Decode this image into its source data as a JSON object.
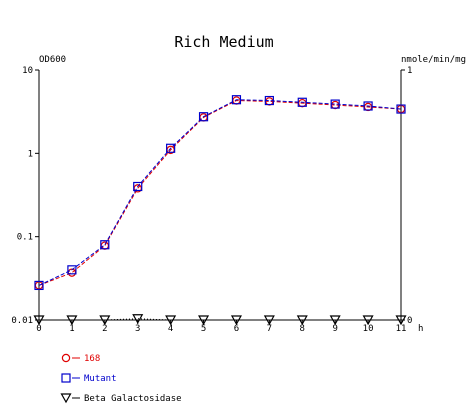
{
  "chart_data": {
    "type": "line",
    "title": "Rich Medium",
    "y_left_label": "OD600",
    "y_right_label": "nmole/min/mg",
    "x_unit_label": "h",
    "x": [
      0,
      1,
      2,
      3,
      4,
      5,
      6,
      7,
      8,
      9,
      10,
      11
    ],
    "x_tick_labels": [
      "0",
      "1",
      "2",
      "3",
      "4",
      "5",
      "6",
      "7",
      "8",
      "9",
      "10",
      "11"
    ],
    "y_left_scale": "log",
    "y_left_range": [
      0.01,
      10
    ],
    "y_left_tick_labels": [
      "10",
      "1",
      "0.1",
      "0.01"
    ],
    "y_right_range": [
      0,
      1
    ],
    "y_right_tick_labels": [
      "1",
      "0"
    ],
    "grid": false,
    "legend_position": "bottom-left",
    "series": [
      {
        "name": "168",
        "axis": "left",
        "marker": "circle",
        "color": "#e00000",
        "line_style": "dashed",
        "values": [
          0.026,
          0.037,
          0.078,
          0.38,
          1.1,
          2.7,
          4.3,
          4.2,
          4.0,
          3.8,
          3.6,
          3.4
        ]
      },
      {
        "name": "Mutant",
        "axis": "left",
        "marker": "square",
        "color": "#0000cc",
        "line_style": "dashed",
        "values": [
          0.026,
          0.04,
          0.08,
          0.4,
          1.15,
          2.75,
          4.4,
          4.3,
          4.1,
          3.9,
          3.7,
          3.4
        ]
      },
      {
        "name": "Beta Galactosidase",
        "axis": "right",
        "marker": "triangle-down",
        "color": "#000000",
        "line_style": "dotted",
        "values": [
          0,
          0,
          0,
          0.005,
          0,
          0,
          0,
          0,
          0,
          0,
          0,
          0
        ]
      }
    ]
  }
}
